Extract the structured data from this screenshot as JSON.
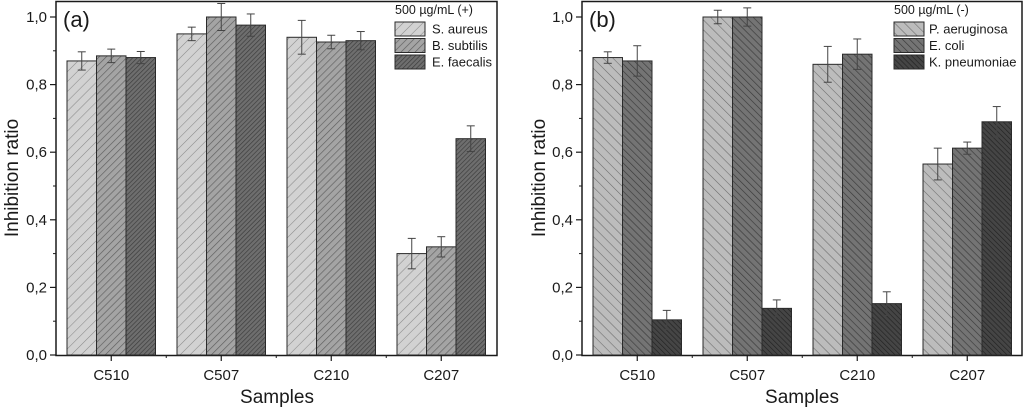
{
  "chart_data": [
    {
      "type": "bar",
      "panel_label": "(a)",
      "title": "",
      "xlabel": "Samples",
      "ylabel": "Inhibition ratio",
      "ylim": [
        0,
        1.04
      ],
      "yticks": [
        "0,0",
        "0,2",
        "0,4",
        "0,6",
        "0,8",
        "1,0"
      ],
      "ytick_values": [
        0,
        0.2,
        0.4,
        0.6,
        0.8,
        1.0
      ],
      "categories": [
        "C510",
        "C507",
        "C210",
        "C207"
      ],
      "legend_title": "500 µg/mL (+)",
      "legend_position": "top-right",
      "grid": false,
      "hatch_direction": "forward",
      "series": [
        {
          "name": "S. aureus",
          "color": "#d2d2d2",
          "hatch": "#8a8a8a",
          "values": [
            0.87,
            0.95,
            0.94,
            0.3
          ],
          "errors": [
            0.027,
            0.02,
            0.05,
            0.045
          ]
        },
        {
          "name": "B. subtilis",
          "color": "#a4a4a4",
          "hatch": "#5e5e5e",
          "values": [
            0.885,
            1.0,
            0.926,
            0.32
          ],
          "errors": [
            0.02,
            0.04,
            0.02,
            0.03
          ]
        },
        {
          "name": "E. faecalis",
          "color": "#6e6e6e",
          "hatch": "#3c3c3c",
          "values": [
            0.88,
            0.976,
            0.93,
            0.64
          ],
          "errors": [
            0.018,
            0.033,
            0.027,
            0.038
          ]
        }
      ]
    },
    {
      "type": "bar",
      "panel_label": "(b)",
      "title": "",
      "xlabel": "Samples",
      "ylabel": "Inhibition ratio",
      "ylim": [
        0,
        1.04
      ],
      "yticks": [
        "0,0",
        "0,2",
        "0,4",
        "0,6",
        "0,8",
        "1,0"
      ],
      "ytick_values": [
        0,
        0.2,
        0.4,
        0.6,
        0.8,
        1.0
      ],
      "categories": [
        "C510",
        "C507",
        "C210",
        "C207"
      ],
      "legend_title": "500 µg/mL (-)",
      "legend_position": "top-right",
      "grid": false,
      "hatch_direction": "backward",
      "series": [
        {
          "name": "P. aeruginosa",
          "color": "#bcbcbc",
          "hatch": "#6a6a6a",
          "values": [
            0.88,
            1.0,
            0.86,
            0.565
          ],
          "errors": [
            0.017,
            0.02,
            0.053,
            0.047
          ]
        },
        {
          "name": "E. coli",
          "color": "#747474",
          "hatch": "#3a3a3a",
          "values": [
            0.87,
            1.0,
            0.89,
            0.612
          ],
          "errors": [
            0.045,
            0.027,
            0.045,
            0.018
          ]
        },
        {
          "name": "K. pneumoniae",
          "color": "#454545",
          "hatch": "#222222",
          "values": [
            0.104,
            0.138,
            0.152,
            0.69
          ],
          "errors": [
            0.028,
            0.025,
            0.035,
            0.045
          ]
        }
      ]
    }
  ]
}
